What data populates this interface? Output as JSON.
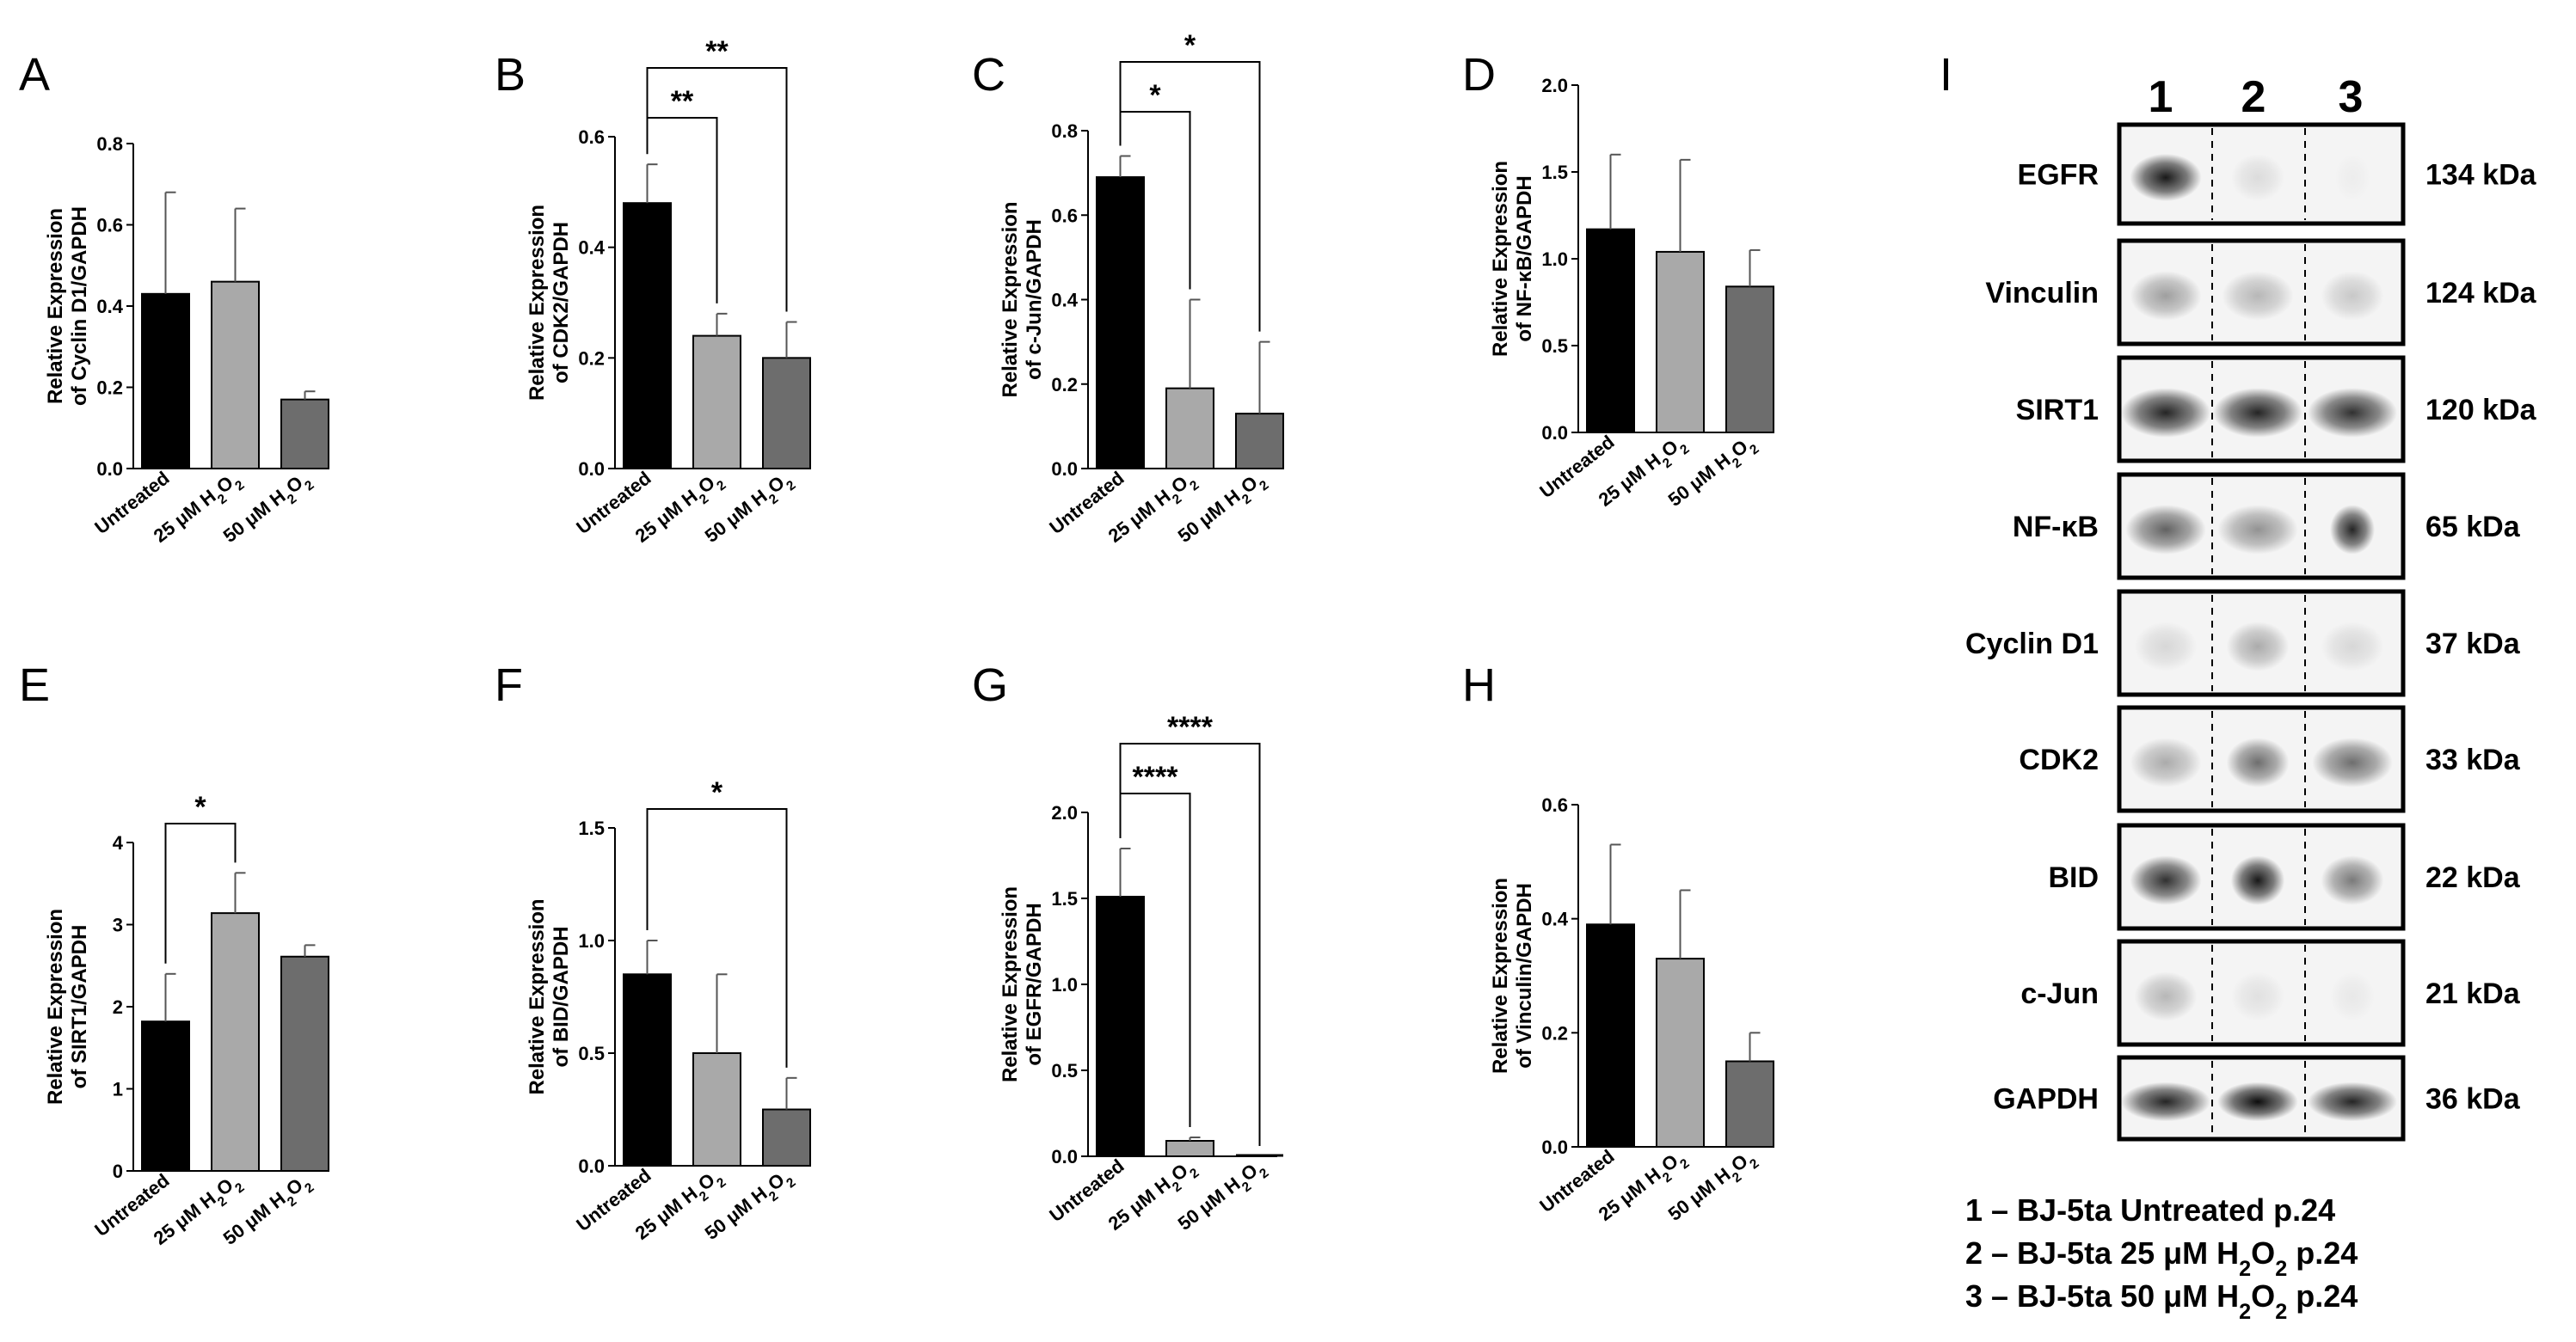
{
  "colors": {
    "untreated": "#000000",
    "h2o2_25": "#a9a9a9",
    "h2o2_50": "#6d6d6d"
  },
  "categories": [
    {
      "pre": "Untreated",
      "sub": "",
      "post": ""
    },
    {
      "pre": "25 μM H",
      "sub": "2",
      "post": "O",
      "sub2": "2"
    },
    {
      "pre": "50 μM H",
      "sub": "2",
      "post": "O",
      "sub2": "2"
    }
  ],
  "chart_data": [
    {
      "type": "bar",
      "panel": "A",
      "ylabel_line1": "Relative Expression",
      "ylabel_line2": "of Cyclin D1/GAPDH",
      "ylim": [
        0,
        0.8
      ],
      "ticks": [
        "0.0",
        "0.2",
        "0.4",
        "0.6",
        "0.8"
      ],
      "tick_values": [
        0,
        0.2,
        0.4,
        0.6,
        0.8
      ],
      "values": [
        0.43,
        0.46,
        0.17
      ],
      "errors": [
        0.25,
        0.18,
        0.02
      ],
      "significance": []
    },
    {
      "type": "bar",
      "panel": "B",
      "ylabel_line1": "Relative Expression",
      "ylabel_line2": "of CDK2/GAPDH",
      "ylim": [
        0,
        0.6
      ],
      "ticks": [
        "0.0",
        "0.2",
        "0.4",
        "0.6"
      ],
      "tick_values": [
        0,
        0.2,
        0.4,
        0.6
      ],
      "values": [
        0.48,
        0.24,
        0.2
      ],
      "errors": [
        0.07,
        0.04,
        0.065
      ],
      "significance": [
        {
          "from": 0,
          "to": 1,
          "label": "**"
        },
        {
          "from": 0,
          "to": 2,
          "label": "**"
        }
      ]
    },
    {
      "type": "bar",
      "panel": "C",
      "ylabel_line1": "Relative Expression",
      "ylabel_line2": "of c-Jun/GAPDH",
      "ylim": [
        0,
        0.8
      ],
      "ticks": [
        "0.0",
        "0.2",
        "0.4",
        "0.6",
        "0.8"
      ],
      "tick_values": [
        0,
        0.2,
        0.4,
        0.6,
        0.8
      ],
      "values": [
        0.69,
        0.19,
        0.13
      ],
      "errors": [
        0.05,
        0.21,
        0.17
      ],
      "significance": [
        {
          "from": 0,
          "to": 1,
          "label": "*"
        },
        {
          "from": 0,
          "to": 2,
          "label": "*"
        }
      ]
    },
    {
      "type": "bar",
      "panel": "D",
      "ylabel_line1": "Relative Expression",
      "ylabel_line2": "of NF-κB/GAPDH",
      "ylim": [
        0,
        2.0
      ],
      "ticks": [
        "0.0",
        "0.5",
        "1.0",
        "1.5",
        "2.0"
      ],
      "tick_values": [
        0,
        0.5,
        1.0,
        1.5,
        2.0
      ],
      "values": [
        1.17,
        1.04,
        0.84
      ],
      "errors": [
        0.43,
        0.53,
        0.21
      ],
      "significance": []
    },
    {
      "type": "bar",
      "panel": "E",
      "ylabel_line1": "Relative Expression",
      "ylabel_line2": "of SIRT1/GAPDH",
      "ylim": [
        0,
        4
      ],
      "ticks": [
        "0",
        "1",
        "2",
        "3",
        "4"
      ],
      "tick_values": [
        0,
        1,
        2,
        3,
        4
      ],
      "values": [
        1.82,
        3.14,
        2.61
      ],
      "errors": [
        0.58,
        0.49,
        0.14
      ],
      "significance": [
        {
          "from": 0,
          "to": 1,
          "label": "*"
        }
      ]
    },
    {
      "type": "bar",
      "panel": "F",
      "ylabel_line1": "Relative Expression",
      "ylabel_line2": "of BID/GAPDH",
      "ylim": [
        0,
        1.5
      ],
      "ticks": [
        "0.0",
        "0.5",
        "1.0",
        "1.5"
      ],
      "tick_values": [
        0,
        0.5,
        1.0,
        1.5
      ],
      "values": [
        0.85,
        0.5,
        0.25
      ],
      "errors": [
        0.15,
        0.35,
        0.14
      ],
      "significance": [
        {
          "from": 0,
          "to": 2,
          "label": "*"
        }
      ]
    },
    {
      "type": "bar",
      "panel": "G",
      "ylabel_line1": "Relative Expression",
      "ylabel_line2": "of EGFR/GAPDH",
      "ylim": [
        0,
        2.0
      ],
      "ticks": [
        "0.0",
        "0.5",
        "1.0",
        "1.5",
        "2.0"
      ],
      "tick_values": [
        0,
        0.5,
        1.0,
        1.5,
        2.0
      ],
      "values": [
        1.51,
        0.09,
        0.0
      ],
      "errors": [
        0.28,
        0.02,
        0.0
      ],
      "significance": [
        {
          "from": 0,
          "to": 1,
          "label": "****"
        },
        {
          "from": 0,
          "to": 2,
          "label": "****"
        }
      ]
    },
    {
      "type": "bar",
      "panel": "H",
      "ylabel_line1": "Relative Expression",
      "ylabel_line2": "of Vinculin/GAPDH",
      "ylim": [
        0,
        0.6
      ],
      "ticks": [
        "0.0",
        "0.2",
        "0.4",
        "0.6"
      ],
      "tick_values": [
        0,
        0.2,
        0.4,
        0.6
      ],
      "values": [
        0.39,
        0.33,
        0.15
      ],
      "errors": [
        0.14,
        0.12,
        0.05
      ],
      "significance": []
    }
  ],
  "western_blot": {
    "panel": "I",
    "lanes": [
      "1",
      "2",
      "3"
    ],
    "rows": [
      {
        "protein": "EGFR",
        "kda": "134 kDa",
        "intensities": [
          0.9,
          0.1,
          0.03
        ],
        "width": [
          0.8,
          0.6,
          0.4
        ]
      },
      {
        "protein": "Vinculin",
        "kda": "124 kDa",
        "intensities": [
          0.35,
          0.25,
          0.18
        ],
        "width": [
          0.8,
          0.8,
          0.7
        ]
      },
      {
        "protein": "SIRT1",
        "kda": "120 kDa",
        "intensities": [
          0.85,
          0.85,
          0.8
        ],
        "width": [
          1,
          1,
          1
        ]
      },
      {
        "protein": "NF-κB",
        "kda": "65 kDa",
        "intensities": [
          0.6,
          0.4,
          0.85
        ],
        "width": [
          0.9,
          0.9,
          0.5
        ]
      },
      {
        "protein": "Cyclin D1",
        "kda": "37 kDa",
        "intensities": [
          0.12,
          0.3,
          0.12
        ],
        "width": [
          0.7,
          0.7,
          0.7
        ]
      },
      {
        "protein": "CDK2",
        "kda": "33 kDa",
        "intensities": [
          0.3,
          0.55,
          0.55
        ],
        "width": [
          0.8,
          0.7,
          0.9
        ]
      },
      {
        "protein": "BID",
        "kda": "22 kDa",
        "intensities": [
          0.8,
          0.9,
          0.5
        ],
        "width": [
          0.8,
          0.6,
          0.7
        ]
      },
      {
        "protein": "c-Jun",
        "kda": "21 kDa",
        "intensities": [
          0.25,
          0.08,
          0.05
        ],
        "width": [
          0.7,
          0.6,
          0.5
        ]
      },
      {
        "protein": "GAPDH",
        "kda": "36 kDa",
        "intensities": [
          0.85,
          0.95,
          0.85
        ],
        "width": [
          1,
          0.9,
          1
        ]
      }
    ],
    "legend": [
      {
        "pre": "1 – BJ-5ta Untreated p.24",
        "sub": "",
        "mid": "",
        "sub2": "",
        "post": ""
      },
      {
        "pre": "2 – BJ-5ta 25 μM H",
        "sub": "2",
        "mid": "O",
        "sub2": "2",
        "post": " p.24"
      },
      {
        "pre": "3 – BJ-5ta 50 μM H",
        "sub": "2",
        "mid": "O",
        "sub2": "2",
        "post": " p.24"
      }
    ]
  }
}
